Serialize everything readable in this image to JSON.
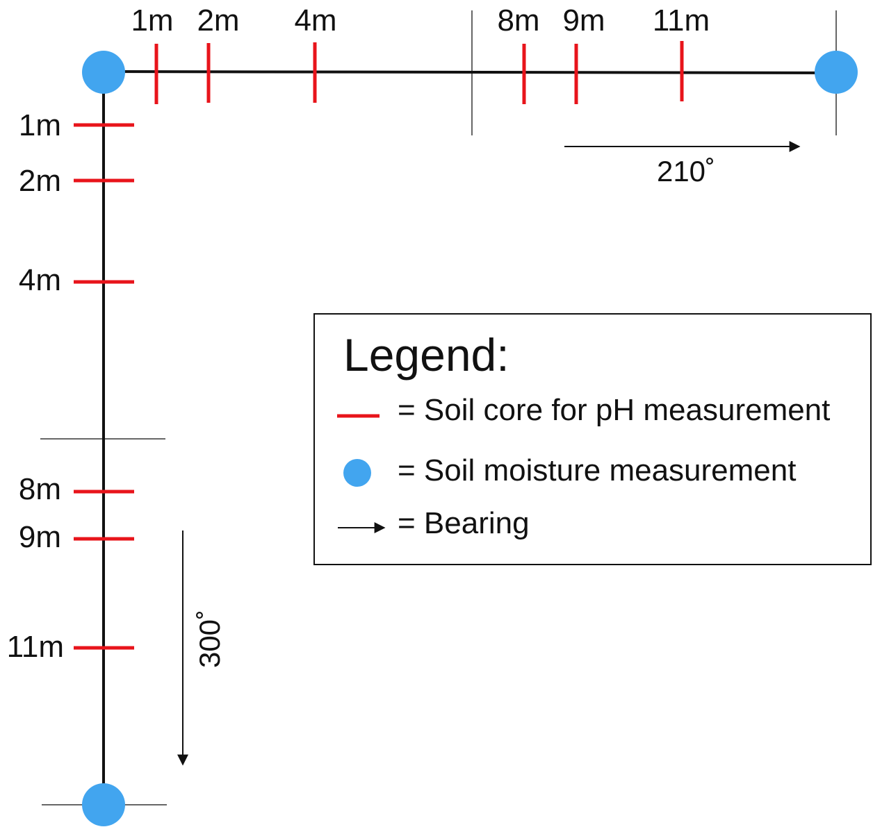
{
  "colors": {
    "soil_core": "#e8141b",
    "moisture_point": "#42a5ef",
    "transect_line": "#111111"
  },
  "horizontal_transect": {
    "distance_labels": [
      "1m",
      "2m",
      "4m",
      "8m",
      "9m",
      "11m"
    ],
    "bearing_label": "210˚"
  },
  "vertical_transect": {
    "distance_labels": [
      "1m",
      "2m",
      "4m",
      "8m",
      "9m",
      "11m"
    ],
    "bearing_label": "300˚"
  },
  "legend": {
    "title": "Legend:",
    "items": [
      {
        "symbol": "red-dash",
        "label": "= Soil core for pH measurement"
      },
      {
        "symbol": "blue-dot",
        "label": "= Soil moisture measurement"
      },
      {
        "symbol": "arrow",
        "label": "= Bearing"
      }
    ]
  }
}
